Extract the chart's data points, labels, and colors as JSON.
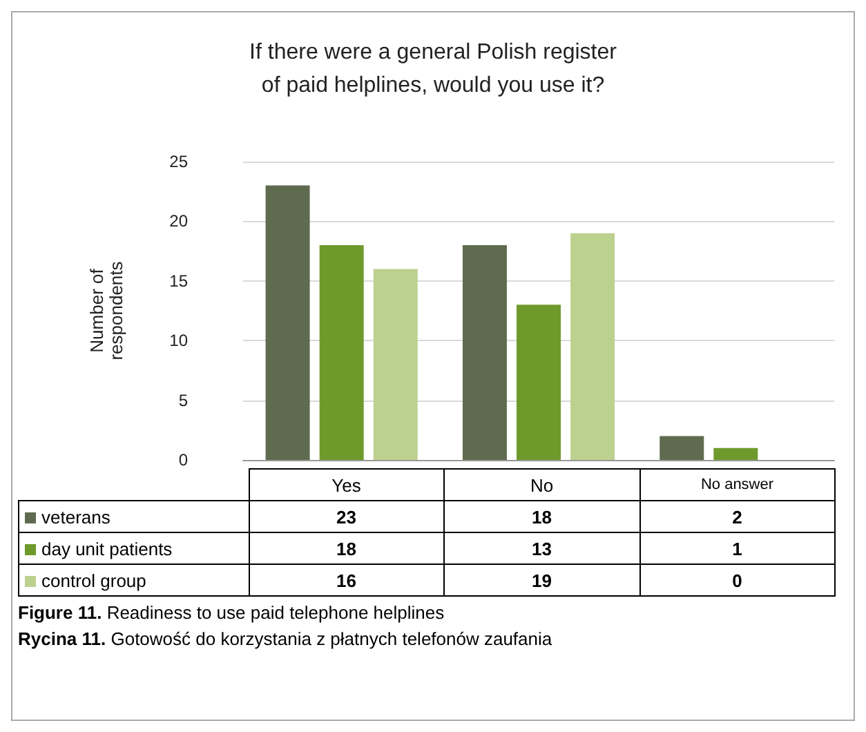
{
  "chart_data": {
    "type": "bar",
    "title": "If there were a general Polish register\nof paid helplines, would you use it?",
    "ylabel": "Number of\nrespondents",
    "categories": [
      "Yes",
      "No",
      "No answer"
    ],
    "series": [
      {
        "name": "veterans",
        "color": "#5f6b4f",
        "values": [
          23,
          18,
          2
        ]
      },
      {
        "name": "day unit patients",
        "color": "#6e9a2c",
        "values": [
          18,
          13,
          1
        ]
      },
      {
        "name": "control group",
        "color": "#bdd18f",
        "values": [
          16,
          19,
          0
        ]
      }
    ],
    "ylim": [
      0,
      25
    ],
    "yticks": [
      0,
      5,
      10,
      15,
      20,
      25
    ],
    "grid": "y",
    "legend": "bottom",
    "data_labels": true,
    "annotations": [
      "Figure 11. Readiness to use paid telephone helplines",
      "Rycina 11. Gotowość do korzystania z płatnych telefonów zaufania"
    ]
  }
}
